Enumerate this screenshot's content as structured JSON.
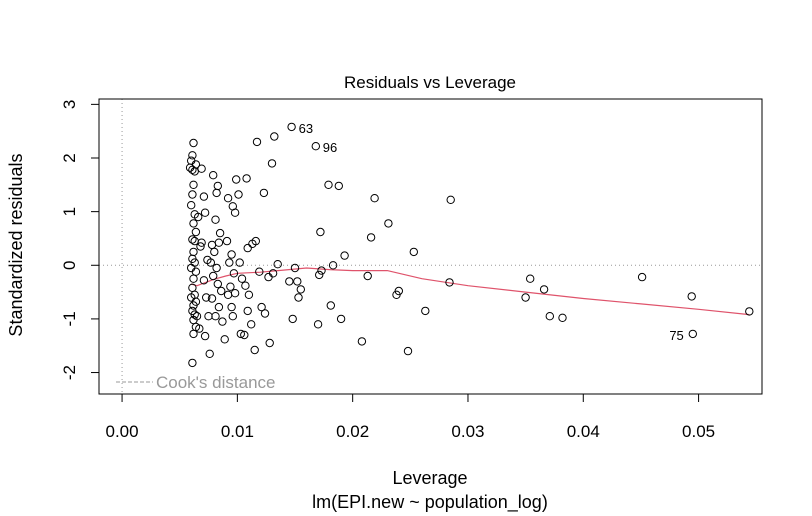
{
  "chart_data": {
    "type": "scatter",
    "title": "Residuals vs Leverage",
    "xlabel": "Leverage",
    "subtitle": "lm(EPI.new ~ population_log)",
    "ylabel": "Standardized residuals",
    "xlim": [
      -0.002,
      0.0555
    ],
    "ylim": [
      -2.4,
      3.1
    ],
    "xticks": [
      0.0,
      0.01,
      0.02,
      0.03,
      0.04,
      0.05
    ],
    "xtick_labels": [
      "0.00",
      "0.01",
      "0.02",
      "0.03",
      "0.04",
      "0.05"
    ],
    "yticks": [
      -2,
      -1,
      0,
      1,
      2,
      3
    ],
    "ytick_labels": [
      "-2",
      "-1",
      "0",
      "1",
      "2",
      "3"
    ],
    "grid": false,
    "zero_line": true,
    "cooks_legend": "Cook's distance",
    "colors": {
      "points": "#000000",
      "smooth": "#DF536B",
      "reference": "#999999",
      "legend_text": "#999999"
    },
    "points": [
      {
        "x": 0.0062,
        "y": 2.28
      },
      {
        "x": 0.0061,
        "y": 2.05
      },
      {
        "x": 0.006,
        "y": 1.95
      },
      {
        "x": 0.0064,
        "y": 1.88
      },
      {
        "x": 0.0059,
        "y": 1.82
      },
      {
        "x": 0.0061,
        "y": 1.78
      },
      {
        "x": 0.0063,
        "y": 1.75
      },
      {
        "x": 0.0069,
        "y": 1.8
      },
      {
        "x": 0.0062,
        "y": 1.5
      },
      {
        "x": 0.0061,
        "y": 1.32
      },
      {
        "x": 0.006,
        "y": 1.12
      },
      {
        "x": 0.0063,
        "y": 0.95
      },
      {
        "x": 0.0066,
        "y": 0.9
      },
      {
        "x": 0.0062,
        "y": 0.78
      },
      {
        "x": 0.0064,
        "y": 0.62
      },
      {
        "x": 0.0061,
        "y": 0.48
      },
      {
        "x": 0.0063,
        "y": 0.45
      },
      {
        "x": 0.0069,
        "y": 0.42
      },
      {
        "x": 0.0062,
        "y": 0.25
      },
      {
        "x": 0.0061,
        "y": 0.12
      },
      {
        "x": 0.0063,
        "y": 0.05
      },
      {
        "x": 0.006,
        "y": -0.05
      },
      {
        "x": 0.0064,
        "y": -0.12
      },
      {
        "x": 0.0062,
        "y": -0.25
      },
      {
        "x": 0.0061,
        "y": -0.42
      },
      {
        "x": 0.0063,
        "y": -0.55
      },
      {
        "x": 0.006,
        "y": -0.6
      },
      {
        "x": 0.0064,
        "y": -0.68
      },
      {
        "x": 0.0062,
        "y": -0.75
      },
      {
        "x": 0.0061,
        "y": -0.85
      },
      {
        "x": 0.0063,
        "y": -0.92
      },
      {
        "x": 0.0065,
        "y": -0.95
      },
      {
        "x": 0.0062,
        "y": -1.02
      },
      {
        "x": 0.0064,
        "y": -1.15
      },
      {
        "x": 0.0067,
        "y": -1.18
      },
      {
        "x": 0.0062,
        "y": -1.28
      },
      {
        "x": 0.0061,
        "y": -1.82
      },
      {
        "x": 0.0071,
        "y": 1.28
      },
      {
        "x": 0.0072,
        "y": 0.98
      },
      {
        "x": 0.0068,
        "y": 0.35
      },
      {
        "x": 0.0074,
        "y": 0.1
      },
      {
        "x": 0.0071,
        "y": -0.28
      },
      {
        "x": 0.0073,
        "y": -0.6
      },
      {
        "x": 0.0075,
        "y": -0.95
      },
      {
        "x": 0.0072,
        "y": -1.32
      },
      {
        "x": 0.0076,
        "y": -1.65
      },
      {
        "x": 0.0079,
        "y": 1.68
      },
      {
        "x": 0.0082,
        "y": 1.35
      },
      {
        "x": 0.0083,
        "y": 1.48
      },
      {
        "x": 0.0081,
        "y": 0.85
      },
      {
        "x": 0.0085,
        "y": 0.6
      },
      {
        "x": 0.0078,
        "y": 0.38
      },
      {
        "x": 0.0084,
        "y": 0.42
      },
      {
        "x": 0.008,
        "y": 0.25
      },
      {
        "x": 0.0077,
        "y": 0.05
      },
      {
        "x": 0.0082,
        "y": -0.05
      },
      {
        "x": 0.0079,
        "y": -0.2
      },
      {
        "x": 0.0083,
        "y": -0.35
      },
      {
        "x": 0.0086,
        "y": -0.48
      },
      {
        "x": 0.0078,
        "y": -0.62
      },
      {
        "x": 0.0084,
        "y": -0.78
      },
      {
        "x": 0.0081,
        "y": -0.95
      },
      {
        "x": 0.0087,
        "y": -1.05
      },
      {
        "x": 0.0089,
        "y": -1.38
      },
      {
        "x": 0.0092,
        "y": 1.25
      },
      {
        "x": 0.0096,
        "y": 1.1
      },
      {
        "x": 0.0099,
        "y": 1.6
      },
      {
        "x": 0.0098,
        "y": 0.98
      },
      {
        "x": 0.0091,
        "y": 0.45
      },
      {
        "x": 0.0095,
        "y": 0.2
      },
      {
        "x": 0.0093,
        "y": 0.05
      },
      {
        "x": 0.0097,
        "y": -0.15
      },
      {
        "x": 0.0094,
        "y": -0.4
      },
      {
        "x": 0.0092,
        "y": -0.55
      },
      {
        "x": 0.0098,
        "y": -0.52
      },
      {
        "x": 0.0095,
        "y": -0.78
      },
      {
        "x": 0.0096,
        "y": -0.95
      },
      {
        "x": 0.0101,
        "y": 1.32
      },
      {
        "x": 0.0102,
        "y": 0.05
      },
      {
        "x": 0.0104,
        "y": -0.25
      },
      {
        "x": 0.0103,
        "y": -1.28
      },
      {
        "x": 0.0106,
        "y": -1.3
      },
      {
        "x": 0.0108,
        "y": 1.62
      },
      {
        "x": 0.0109,
        "y": 0.32
      },
      {
        "x": 0.0107,
        "y": -0.38
      },
      {
        "x": 0.011,
        "y": -0.55
      },
      {
        "x": 0.0112,
        "y": -1.1
      },
      {
        "x": 0.0109,
        "y": -0.85
      },
      {
        "x": 0.0113,
        "y": 0.4
      },
      {
        "x": 0.0116,
        "y": 0.45
      },
      {
        "x": 0.0117,
        "y": 2.3
      },
      {
        "x": 0.0115,
        "y": -1.58
      },
      {
        "x": 0.0119,
        "y": -0.12
      },
      {
        "x": 0.0121,
        "y": -0.78
      },
      {
        "x": 0.0123,
        "y": 1.35
      },
      {
        "x": 0.0124,
        "y": -0.9
      },
      {
        "x": 0.0127,
        "y": -0.22
      },
      {
        "x": 0.0128,
        "y": -1.45
      },
      {
        "x": 0.013,
        "y": 1.9
      },
      {
        "x": 0.0132,
        "y": 2.4
      },
      {
        "x": 0.0131,
        "y": -0.15
      },
      {
        "x": 0.0135,
        "y": 0.02
      },
      {
        "x": 0.0145,
        "y": -0.3
      },
      {
        "x": 0.0148,
        "y": -1.0
      },
      {
        "x": 0.015,
        "y": -0.05
      },
      {
        "x": 0.0152,
        "y": -0.3
      },
      {
        "x": 0.0153,
        "y": -0.6
      },
      {
        "x": 0.0155,
        "y": -0.45
      },
      {
        "x": 0.0147,
        "y": 2.58,
        "label": "63"
      },
      {
        "x": 0.0168,
        "y": 2.22,
        "label": "96"
      },
      {
        "x": 0.0172,
        "y": 0.62
      },
      {
        "x": 0.0173,
        "y": -0.1
      },
      {
        "x": 0.0171,
        "y": -0.18
      },
      {
        "x": 0.017,
        "y": -1.1
      },
      {
        "x": 0.0179,
        "y": 1.5
      },
      {
        "x": 0.0181,
        "y": -0.75
      },
      {
        "x": 0.0183,
        "y": 0.0
      },
      {
        "x": 0.0188,
        "y": 1.48
      },
      {
        "x": 0.019,
        "y": -1.0
      },
      {
        "x": 0.0193,
        "y": 0.18
      },
      {
        "x": 0.0208,
        "y": -1.42
      },
      {
        "x": 0.0213,
        "y": -0.2
      },
      {
        "x": 0.0216,
        "y": 0.52
      },
      {
        "x": 0.0219,
        "y": 1.25
      },
      {
        "x": 0.0231,
        "y": 0.78
      },
      {
        "x": 0.0238,
        "y": -0.55
      },
      {
        "x": 0.024,
        "y": -0.48
      },
      {
        "x": 0.0248,
        "y": -1.6
      },
      {
        "x": 0.0253,
        "y": 0.25
      },
      {
        "x": 0.0263,
        "y": -0.85
      },
      {
        "x": 0.0285,
        "y": 1.22
      },
      {
        "x": 0.0284,
        "y": -0.32
      },
      {
        "x": 0.035,
        "y": -0.6
      },
      {
        "x": 0.0354,
        "y": -0.25
      },
      {
        "x": 0.0366,
        "y": -0.45
      },
      {
        "x": 0.0371,
        "y": -0.95
      },
      {
        "x": 0.0382,
        "y": -0.98
      },
      {
        "x": 0.0451,
        "y": -0.22
      },
      {
        "x": 0.0494,
        "y": -0.58
      },
      {
        "x": 0.0495,
        "y": -1.28,
        "label": "75"
      },
      {
        "x": 0.0544,
        "y": -0.86
      }
    ],
    "smooth_line": [
      {
        "x": 0.006,
        "y": -0.35
      },
      {
        "x": 0.0065,
        "y": -0.38
      },
      {
        "x": 0.007,
        "y": -0.34
      },
      {
        "x": 0.008,
        "y": -0.26
      },
      {
        "x": 0.009,
        "y": -0.2
      },
      {
        "x": 0.01,
        "y": -0.15
      },
      {
        "x": 0.012,
        "y": -0.13
      },
      {
        "x": 0.014,
        "y": -0.09
      },
      {
        "x": 0.016,
        "y": -0.05
      },
      {
        "x": 0.018,
        "y": -0.08
      },
      {
        "x": 0.02,
        "y": -0.1
      },
      {
        "x": 0.023,
        "y": -0.1
      },
      {
        "x": 0.026,
        "y": -0.25
      },
      {
        "x": 0.03,
        "y": -0.38
      },
      {
        "x": 0.035,
        "y": -0.5
      },
      {
        "x": 0.04,
        "y": -0.62
      },
      {
        "x": 0.045,
        "y": -0.72
      },
      {
        "x": 0.05,
        "y": -0.82
      },
      {
        "x": 0.0544,
        "y": -0.92
      }
    ]
  }
}
